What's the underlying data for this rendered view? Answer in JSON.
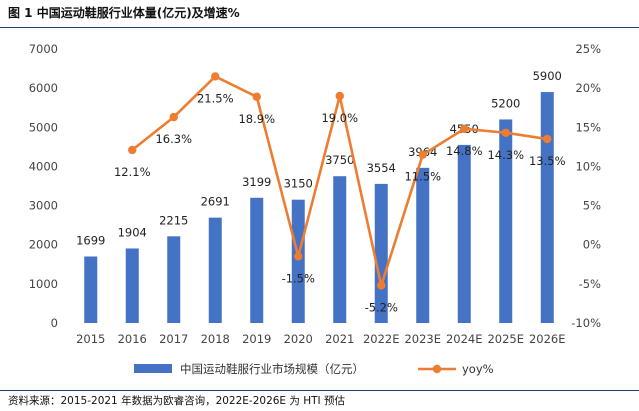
{
  "header": {
    "title": "图 1 中国运动鞋服行业体量(亿元)及增速%"
  },
  "footer": {
    "source": "资料来源：2015-2021 年数据为欧睿咨询，2022E-2026E 为 HTI 预估"
  },
  "chart_data": {
    "type": "bar+line",
    "categories": [
      "2015",
      "2016",
      "2017",
      "2018",
      "2019",
      "2020",
      "2021",
      "2022E",
      "2023E",
      "2024E",
      "2025E",
      "2026E"
    ],
    "series": [
      {
        "name": "中国运动鞋服行业市场规模（亿元）",
        "type": "bar",
        "axis": "left",
        "color": "#4472c4",
        "values": [
          1699,
          1904,
          2215,
          2691,
          3199,
          3150,
          3750,
          3554,
          3964,
          4550,
          5200,
          5900
        ],
        "labels": [
          "1699",
          "1904",
          "2215",
          "2691",
          "3199",
          "3150",
          "3750",
          "3554",
          "3964",
          "4550",
          "5200",
          "5900"
        ]
      },
      {
        "name": "yoy%",
        "type": "line",
        "axis": "right",
        "color": "#ed7d31",
        "values": [
          null,
          12.1,
          16.3,
          21.5,
          18.9,
          -1.5,
          19.0,
          -5.2,
          11.5,
          14.8,
          14.3,
          13.5
        ],
        "labels": [
          "",
          "12.1%",
          "16.3%",
          "21.5%",
          "18.9%",
          "-1.5%",
          "19.0%",
          "-5.2%",
          "11.5%",
          "14.8%",
          "14.3%",
          "13.5%"
        ]
      }
    ],
    "y_left": {
      "min": 0,
      "max": 7000,
      "step": 1000,
      "ticks": [
        "0",
        "1000",
        "2000",
        "3000",
        "4000",
        "5000",
        "6000",
        "7000"
      ]
    },
    "y_right": {
      "min": -10,
      "max": 25,
      "step": 5,
      "ticks": [
        "-10%",
        "-5%",
        "0%",
        "5%",
        "10%",
        "15%",
        "20%",
        "25%"
      ]
    },
    "legend": {
      "position": "bottom"
    },
    "grid": false
  }
}
